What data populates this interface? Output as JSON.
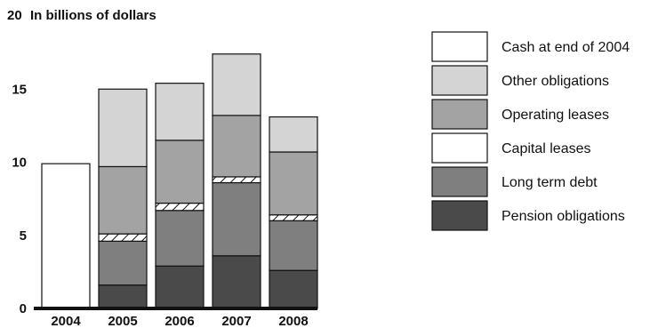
{
  "chart_data": {
    "type": "bar",
    "stacked": true,
    "ylabel": "In billions of dollars",
    "ylim": [
      0,
      20
    ],
    "yticks": [
      0,
      5,
      10,
      15,
      20
    ],
    "categories": [
      "2004",
      "2005",
      "2006",
      "2007",
      "2008"
    ],
    "series": [
      {
        "name": "Pension obligations",
        "color": "#4a4a4a",
        "values": [
          0,
          1.6,
          2.9,
          3.6,
          2.6
        ]
      },
      {
        "name": "Long term debt",
        "color": "#7f7f7f",
        "values": [
          0,
          3.0,
          3.8,
          5.0,
          3.4
        ]
      },
      {
        "name": "Capital leases",
        "color": "#ffffff",
        "pattern": "hatched",
        "values": [
          0,
          0.5,
          0.5,
          0.4,
          0.4
        ]
      },
      {
        "name": "Operating leases",
        "color": "#a3a3a3",
        "values": [
          0,
          4.6,
          4.3,
          4.2,
          4.3
        ]
      },
      {
        "name": "Other obligations",
        "color": "#d4d4d4",
        "values": [
          0,
          5.3,
          3.9,
          4.2,
          2.4
        ]
      },
      {
        "name": "Cash at end of 2004",
        "color": "#ffffff",
        "values": [
          9.9,
          0,
          0,
          0,
          0
        ]
      }
    ],
    "legend_order": [
      "Cash at end of 2004",
      "Other obligations",
      "Operating leases",
      "Capital leases",
      "Long term debt",
      "Pension obligations"
    ],
    "legend_position": "right",
    "grid": false
  }
}
